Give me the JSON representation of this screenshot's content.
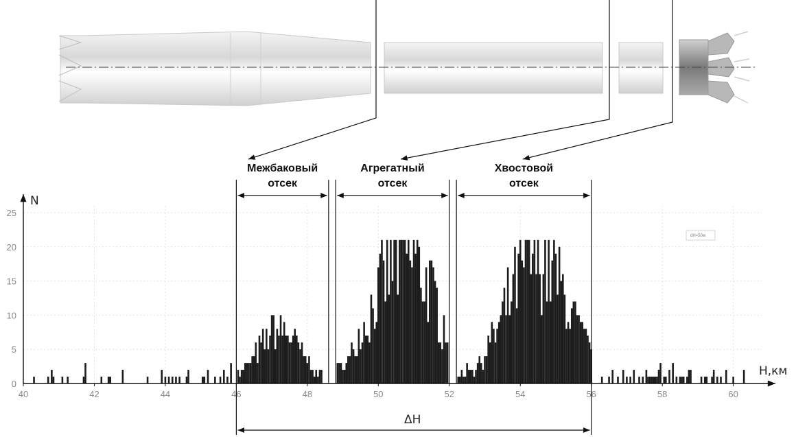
{
  "chart_data": {
    "type": "bar",
    "xlabel": "H,км",
    "ylabel": "N",
    "xlim": [
      40,
      60.8
    ],
    "ylim": [
      0,
      26
    ],
    "xticks": [
      40,
      42,
      44,
      46,
      48,
      50,
      52,
      54,
      56,
      58,
      60
    ],
    "yticks": [
      0,
      5,
      10,
      15,
      20,
      25
    ],
    "bin_width_km": 0.05,
    "bin_note": "dH=50м",
    "grid": true,
    "sections": [
      {
        "line1": "Межбаковый",
        "line2": "отсек",
        "from": 46.0,
        "to": 48.6
      },
      {
        "line1": "Агрегатный",
        "line2": "отсек",
        "from": 48.8,
        "to": 52.0
      },
      {
        "line1": "Хвостовой",
        "line2": "отсек",
        "from": 52.2,
        "to": 56.0
      }
    ],
    "delta_label": "ΔH",
    "delta_range": [
      46.0,
      56.0
    ],
    "background_bins": [
      [
        40.3,
        1
      ],
      [
        40.7,
        1
      ],
      [
        40.8,
        2
      ],
      [
        40.85,
        1
      ],
      [
        41.1,
        1
      ],
      [
        41.25,
        1
      ],
      [
        41.7,
        1
      ],
      [
        41.75,
        3
      ],
      [
        42.2,
        1
      ],
      [
        42.4,
        1
      ],
      [
        42.45,
        1
      ],
      [
        42.8,
        2
      ],
      [
        43.5,
        1
      ],
      [
        43.9,
        2
      ],
      [
        44.0,
        1
      ],
      [
        44.1,
        1
      ],
      [
        44.2,
        1
      ],
      [
        44.3,
        1
      ],
      [
        44.4,
        1
      ],
      [
        44.6,
        1
      ],
      [
        44.65,
        2
      ],
      [
        45.05,
        1
      ],
      [
        45.1,
        1
      ],
      [
        45.2,
        2
      ],
      [
        45.4,
        1
      ],
      [
        45.55,
        1
      ],
      [
        45.65,
        2
      ],
      [
        45.75,
        1
      ],
      [
        45.85,
        3
      ],
      [
        56.3,
        1
      ],
      [
        56.5,
        1
      ],
      [
        56.6,
        2
      ],
      [
        56.75,
        1
      ],
      [
        56.9,
        2
      ],
      [
        57.0,
        1
      ],
      [
        57.1,
        1
      ],
      [
        57.2,
        2
      ],
      [
        57.35,
        1
      ],
      [
        57.45,
        1
      ],
      [
        57.55,
        2
      ],
      [
        57.6,
        1
      ],
      [
        57.65,
        1
      ],
      [
        57.7,
        1
      ],
      [
        57.75,
        1
      ],
      [
        57.8,
        1
      ],
      [
        57.85,
        1
      ],
      [
        57.9,
        2
      ],
      [
        57.95,
        3
      ],
      [
        58.05,
        1
      ],
      [
        58.1,
        1
      ],
      [
        58.2,
        2
      ],
      [
        58.3,
        3
      ],
      [
        58.4,
        1
      ],
      [
        58.5,
        1
      ],
      [
        58.55,
        1
      ],
      [
        58.6,
        1
      ],
      [
        58.7,
        1
      ],
      [
        58.75,
        2
      ],
      [
        58.8,
        2
      ],
      [
        59.1,
        1
      ],
      [
        59.2,
        1
      ],
      [
        59.25,
        1
      ],
      [
        59.4,
        1
      ],
      [
        59.45,
        2
      ],
      [
        59.55,
        1
      ],
      [
        59.65,
        1
      ],
      [
        59.8,
        2
      ],
      [
        60.0,
        1
      ],
      [
        60.3,
        2
      ]
    ],
    "peaks": [
      {
        "center": 47.2,
        "sigma": 0.55,
        "height": 7.5,
        "from": 46.05,
        "to": 48.4
      },
      {
        "center": 50.75,
        "sigma": 0.85,
        "height": 18.5,
        "from": 48.85,
        "to": 51.95
      },
      {
        "center": 54.5,
        "sigma": 0.85,
        "height": 18.0,
        "from": 52.25,
        "to": 56.0
      }
    ]
  }
}
